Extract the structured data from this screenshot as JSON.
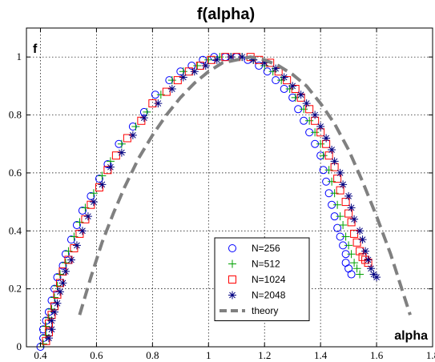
{
  "chart_data": {
    "type": "scatter",
    "title": "f(alpha)",
    "xlabel": "alpha",
    "ylabel": "f",
    "xlim": [
      0.35,
      1.8
    ],
    "ylim": [
      0,
      1.1
    ],
    "xticks": [
      "0.4",
      "0.6",
      "0.8",
      "1",
      "1.2",
      "1.4",
      "1.6",
      "1.8"
    ],
    "yticks": [
      "0",
      "0.2",
      "0.4",
      "0.6",
      "0.8",
      "1"
    ],
    "grid": true,
    "legend_position": "bottom-right",
    "series": [
      {
        "name": "N=256",
        "marker": "circle",
        "color": "#0000ff",
        "points": [
          [
            0.4,
            0.0
          ],
          [
            0.41,
            0.03
          ],
          [
            0.41,
            0.06
          ],
          [
            0.42,
            0.09
          ],
          [
            0.43,
            0.12
          ],
          [
            0.44,
            0.16
          ],
          [
            0.45,
            0.2
          ],
          [
            0.46,
            0.24
          ],
          [
            0.48,
            0.28
          ],
          [
            0.49,
            0.32
          ],
          [
            0.51,
            0.37
          ],
          [
            0.53,
            0.42
          ],
          [
            0.55,
            0.47
          ],
          [
            0.58,
            0.52
          ],
          [
            0.61,
            0.58
          ],
          [
            0.64,
            0.63
          ],
          [
            0.68,
            0.7
          ],
          [
            0.73,
            0.76
          ],
          [
            0.77,
            0.81
          ],
          [
            0.81,
            0.87
          ],
          [
            0.86,
            0.92
          ],
          [
            0.9,
            0.95
          ],
          [
            0.94,
            0.97
          ],
          [
            0.98,
            0.99
          ],
          [
            1.02,
            1.0
          ],
          [
            1.06,
            1.0
          ],
          [
            1.1,
            1.0
          ],
          [
            1.14,
            0.99
          ],
          [
            1.18,
            0.97
          ],
          [
            1.21,
            0.95
          ],
          [
            1.24,
            0.92
          ],
          [
            1.27,
            0.89
          ],
          [
            1.3,
            0.86
          ],
          [
            1.32,
            0.82
          ],
          [
            1.34,
            0.78
          ],
          [
            1.36,
            0.74
          ],
          [
            1.38,
            0.7
          ],
          [
            1.4,
            0.66
          ],
          [
            1.41,
            0.61
          ],
          [
            1.42,
            0.57
          ],
          [
            1.43,
            0.53
          ],
          [
            1.44,
            0.49
          ],
          [
            1.45,
            0.45
          ],
          [
            1.46,
            0.41
          ],
          [
            1.47,
            0.38
          ],
          [
            1.48,
            0.35
          ],
          [
            1.49,
            0.32
          ],
          [
            1.49,
            0.29
          ],
          [
            1.5,
            0.27
          ],
          [
            1.51,
            0.25
          ]
        ]
      },
      {
        "name": "N=512",
        "marker": "plus",
        "color": "#00a000",
        "points": [
          [
            0.41,
            0.01
          ],
          [
            0.42,
            0.04
          ],
          [
            0.42,
            0.07
          ],
          [
            0.43,
            0.1
          ],
          [
            0.44,
            0.13
          ],
          [
            0.45,
            0.17
          ],
          [
            0.46,
            0.21
          ],
          [
            0.47,
            0.25
          ],
          [
            0.49,
            0.29
          ],
          [
            0.5,
            0.33
          ],
          [
            0.52,
            0.38
          ],
          [
            0.54,
            0.43
          ],
          [
            0.56,
            0.48
          ],
          [
            0.59,
            0.53
          ],
          [
            0.62,
            0.59
          ],
          [
            0.65,
            0.64
          ],
          [
            0.69,
            0.7
          ],
          [
            0.74,
            0.76
          ],
          [
            0.78,
            0.81
          ],
          [
            0.83,
            0.87
          ],
          [
            0.87,
            0.92
          ],
          [
            0.91,
            0.95
          ],
          [
            0.96,
            0.97
          ],
          [
            1.0,
            0.99
          ],
          [
            1.04,
            1.0
          ],
          [
            1.08,
            1.0
          ],
          [
            1.12,
            1.0
          ],
          [
            1.16,
            0.99
          ],
          [
            1.2,
            0.97
          ],
          [
            1.23,
            0.95
          ],
          [
            1.26,
            0.92
          ],
          [
            1.29,
            0.89
          ],
          [
            1.31,
            0.86
          ],
          [
            1.34,
            0.82
          ],
          [
            1.36,
            0.78
          ],
          [
            1.38,
            0.74
          ],
          [
            1.4,
            0.7
          ],
          [
            1.41,
            0.66
          ],
          [
            1.43,
            0.61
          ],
          [
            1.44,
            0.57
          ],
          [
            1.45,
            0.53
          ],
          [
            1.46,
            0.49
          ],
          [
            1.47,
            0.45
          ],
          [
            1.48,
            0.42
          ],
          [
            1.49,
            0.38
          ],
          [
            1.5,
            0.35
          ],
          [
            1.51,
            0.32
          ],
          [
            1.52,
            0.29
          ],
          [
            1.53,
            0.27
          ],
          [
            1.54,
            0.25
          ]
        ]
      },
      {
        "name": "N=1024",
        "marker": "square",
        "color": "#ff0000",
        "points": [
          [
            0.42,
            0.02
          ],
          [
            0.43,
            0.05
          ],
          [
            0.43,
            0.08
          ],
          [
            0.44,
            0.11
          ],
          [
            0.45,
            0.14
          ],
          [
            0.46,
            0.18
          ],
          [
            0.47,
            0.22
          ],
          [
            0.48,
            0.26
          ],
          [
            0.5,
            0.3
          ],
          [
            0.52,
            0.34
          ],
          [
            0.54,
            0.39
          ],
          [
            0.56,
            0.44
          ],
          [
            0.58,
            0.49
          ],
          [
            0.61,
            0.55
          ],
          [
            0.64,
            0.61
          ],
          [
            0.67,
            0.66
          ],
          [
            0.71,
            0.72
          ],
          [
            0.76,
            0.78
          ],
          [
            0.8,
            0.84
          ],
          [
            0.85,
            0.88
          ],
          [
            0.89,
            0.92
          ],
          [
            0.93,
            0.95
          ],
          [
            0.97,
            0.97
          ],
          [
            1.01,
            0.99
          ],
          [
            1.06,
            1.0
          ],
          [
            1.1,
            1.0
          ],
          [
            1.15,
            1.0
          ],
          [
            1.18,
            0.99
          ],
          [
            1.22,
            0.98
          ],
          [
            1.25,
            0.95
          ],
          [
            1.28,
            0.92
          ],
          [
            1.31,
            0.89
          ],
          [
            1.33,
            0.86
          ],
          [
            1.36,
            0.82
          ],
          [
            1.38,
            0.78
          ],
          [
            1.4,
            0.74
          ],
          [
            1.42,
            0.7
          ],
          [
            1.43,
            0.66
          ],
          [
            1.45,
            0.62
          ],
          [
            1.46,
            0.58
          ],
          [
            1.47,
            0.54
          ],
          [
            1.49,
            0.5
          ],
          [
            1.5,
            0.46
          ],
          [
            1.51,
            0.43
          ],
          [
            1.52,
            0.39
          ],
          [
            1.53,
            0.36
          ],
          [
            1.54,
            0.33
          ],
          [
            1.55,
            0.31
          ],
          [
            1.56,
            0.3
          ],
          [
            1.57,
            0.29
          ]
        ]
      },
      {
        "name": "N=2048",
        "marker": "asterisk",
        "color": "#000080",
        "points": [
          [
            0.43,
            0.03
          ],
          [
            0.44,
            0.06
          ],
          [
            0.44,
            0.09
          ],
          [
            0.45,
            0.12
          ],
          [
            0.46,
            0.15
          ],
          [
            0.47,
            0.19
          ],
          [
            0.48,
            0.22
          ],
          [
            0.49,
            0.26
          ],
          [
            0.51,
            0.3
          ],
          [
            0.53,
            0.35
          ],
          [
            0.55,
            0.4
          ],
          [
            0.57,
            0.45
          ],
          [
            0.59,
            0.5
          ],
          [
            0.62,
            0.56
          ],
          [
            0.65,
            0.62
          ],
          [
            0.69,
            0.67
          ],
          [
            0.73,
            0.73
          ],
          [
            0.77,
            0.79
          ],
          [
            0.82,
            0.84
          ],
          [
            0.87,
            0.89
          ],
          [
            0.91,
            0.93
          ],
          [
            0.95,
            0.95
          ],
          [
            0.99,
            0.97
          ],
          [
            1.03,
            0.99
          ],
          [
            1.08,
            1.0
          ],
          [
            1.12,
            1.0
          ],
          [
            1.16,
            0.99
          ],
          [
            1.2,
            0.98
          ],
          [
            1.24,
            0.96
          ],
          [
            1.27,
            0.93
          ],
          [
            1.3,
            0.9
          ],
          [
            1.33,
            0.87
          ],
          [
            1.35,
            0.84
          ],
          [
            1.38,
            0.8
          ],
          [
            1.4,
            0.76
          ],
          [
            1.42,
            0.72
          ],
          [
            1.44,
            0.68
          ],
          [
            1.45,
            0.64
          ],
          [
            1.47,
            0.6
          ],
          [
            1.48,
            0.56
          ],
          [
            1.5,
            0.52
          ],
          [
            1.51,
            0.48
          ],
          [
            1.52,
            0.44
          ],
          [
            1.54,
            0.4
          ],
          [
            1.55,
            0.37
          ],
          [
            1.56,
            0.33
          ],
          [
            1.57,
            0.3
          ],
          [
            1.58,
            0.27
          ],
          [
            1.59,
            0.25
          ],
          [
            1.6,
            0.24
          ]
        ]
      },
      {
        "name": "theory",
        "marker": "dashed-line",
        "color": "#808080",
        "points": [
          [
            0.54,
            0.11
          ],
          [
            0.58,
            0.24
          ],
          [
            0.62,
            0.36
          ],
          [
            0.66,
            0.46
          ],
          [
            0.7,
            0.55
          ],
          [
            0.75,
            0.65
          ],
          [
            0.8,
            0.73
          ],
          [
            0.85,
            0.8
          ],
          [
            0.9,
            0.86
          ],
          [
            0.95,
            0.91
          ],
          [
            1.0,
            0.95
          ],
          [
            1.05,
            0.98
          ],
          [
            1.1,
            0.99
          ],
          [
            1.15,
            1.0
          ],
          [
            1.2,
            0.99
          ],
          [
            1.25,
            0.97
          ],
          [
            1.3,
            0.94
          ],
          [
            1.35,
            0.9
          ],
          [
            1.4,
            0.84
          ],
          [
            1.45,
            0.77
          ],
          [
            1.5,
            0.68
          ],
          [
            1.55,
            0.57
          ],
          [
            1.6,
            0.45
          ],
          [
            1.65,
            0.32
          ],
          [
            1.7,
            0.17
          ],
          [
            1.72,
            0.11
          ]
        ]
      }
    ]
  }
}
